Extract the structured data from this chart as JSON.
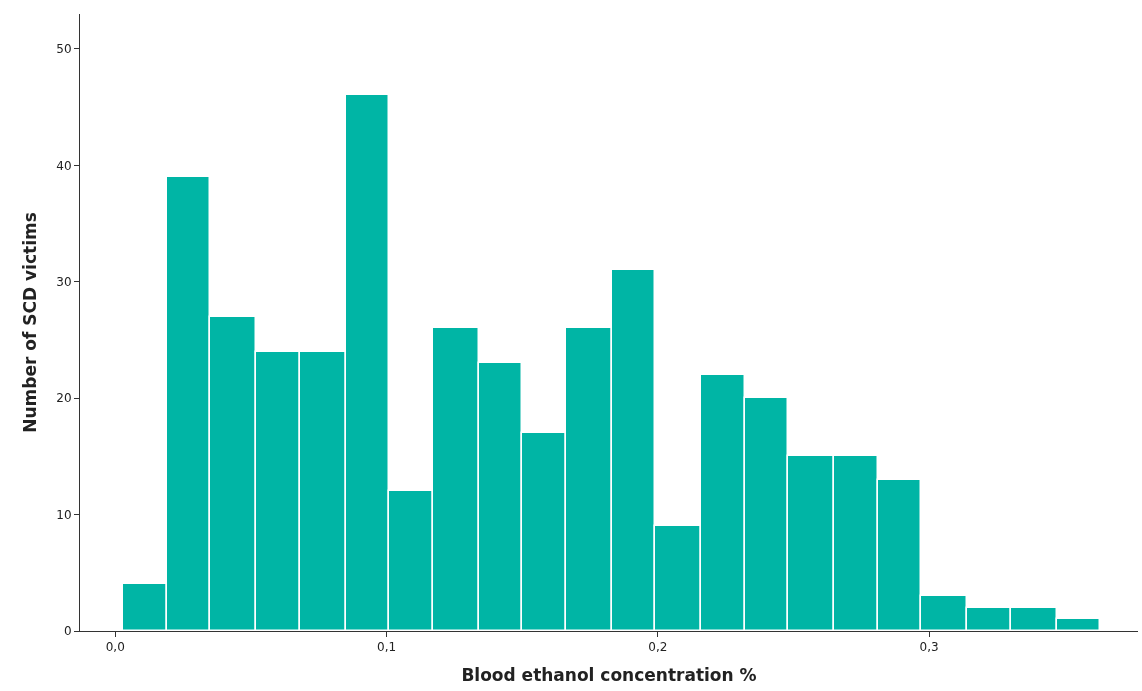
{
  "chart_data": {
    "type": "histogram",
    "xlabel": "Blood ethanol concentration %",
    "ylabel": "Number of SCD victims",
    "bins": [
      0.003,
      0.019,
      0.035,
      0.052,
      0.068,
      0.085,
      0.101,
      0.117,
      0.134,
      0.15,
      0.166,
      0.183,
      0.199,
      0.216,
      0.232,
      0.248,
      0.265,
      0.281,
      0.297,
      0.314,
      0.33,
      0.347,
      0.363
    ],
    "values": [
      4,
      39,
      27,
      24,
      24,
      46,
      12,
      26,
      23,
      17,
      26,
      31,
      9,
      22,
      20,
      15,
      15,
      13,
      3,
      2,
      2,
      1
    ],
    "color": "#00b5a5",
    "xlim": [
      -0.013,
      0.377
    ],
    "xticks": [
      {
        "value": 0,
        "label": "0,0"
      },
      {
        "value": 0.1,
        "label": "0,1"
      },
      {
        "value": 0.2,
        "label": "0,2"
      },
      {
        "value": 0.3,
        "label": "0,3"
      }
    ],
    "ylim": [
      0,
      53
    ],
    "yticks": [
      0,
      10,
      20,
      30,
      40,
      50
    ]
  }
}
